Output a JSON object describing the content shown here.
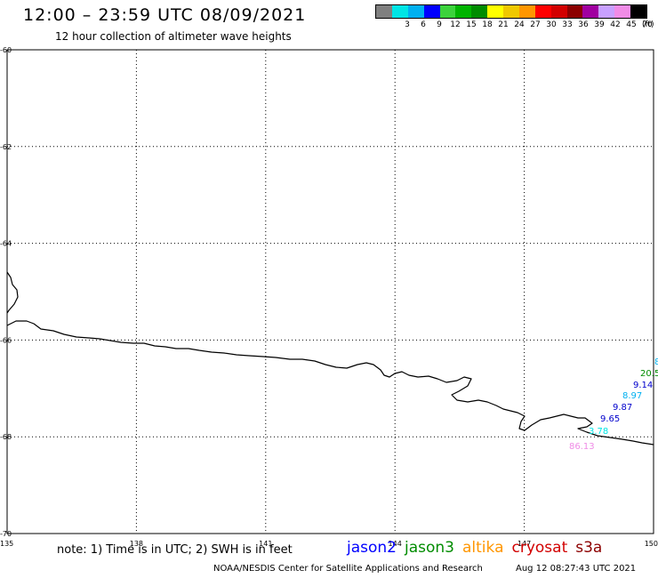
{
  "header": {
    "title": "12:00 – 23:59 UTC 08/09/2021",
    "subtitle": "12 hour collection of altimeter wave heights"
  },
  "color_scale": {
    "unit": "(ft)",
    "steps": [
      {
        "label": "",
        "color": "#7f7f7f"
      },
      {
        "label": "3",
        "color": "#00e5e5"
      },
      {
        "label": "6",
        "color": "#00b0f0"
      },
      {
        "label": "9",
        "color": "#0000ff"
      },
      {
        "label": "12",
        "color": "#3cd23c"
      },
      {
        "label": "15",
        "color": "#00b400"
      },
      {
        "label": "18",
        "color": "#008c00"
      },
      {
        "label": "21",
        "color": "#ffff00"
      },
      {
        "label": "24",
        "color": "#f0c800"
      },
      {
        "label": "27",
        "color": "#ff9600"
      },
      {
        "label": "30",
        "color": "#ff0000"
      },
      {
        "label": "33",
        "color": "#d20000"
      },
      {
        "label": "36",
        "color": "#8c0000"
      },
      {
        "label": "39",
        "color": "#a000a0"
      },
      {
        "label": "42",
        "color": "#c8a0ff"
      },
      {
        "label": "45",
        "color": "#f08ce6"
      },
      {
        "label": "70",
        "color": "#000000"
      }
    ]
  },
  "map": {
    "lon_ticks": [
      "135",
      "138",
      "141",
      "144",
      "147",
      "150"
    ],
    "lat_ticks": [
      "-60",
      "-62",
      "-64",
      "-66",
      "-68",
      "-70"
    ],
    "wave_readings": [
      {
        "text": "86.13",
        "color": "#f08ce6"
      },
      {
        "text": "3.78",
        "color": "#00e5e5"
      },
      {
        "text": "9.65",
        "color": "#0000cc"
      },
      {
        "text": "9.87",
        "color": "#0000cc"
      },
      {
        "text": "8.97",
        "color": "#00b0f0"
      },
      {
        "text": "9.14",
        "color": "#0000cc"
      },
      {
        "text": "20.5",
        "color": "#008c00"
      },
      {
        "text": "8",
        "color": "#00b0f0"
      }
    ]
  },
  "footer": {
    "note": "note:  1) Time is in UTC;  2) SWH is in feet",
    "satellites": [
      {
        "name": "jason2",
        "color": "#0000ff"
      },
      {
        "name": "jason3",
        "color": "#008c00"
      },
      {
        "name": "altika",
        "color": "#ff9600"
      },
      {
        "name": "cryosat",
        "color": "#d20000"
      },
      {
        "name": "s3a",
        "color": "#8c0000"
      }
    ],
    "credit": "NOAA/NESDIS Center for Satellite Applications and Research",
    "timestamp": "Aug 12 08:27:43 UTC 2021"
  }
}
